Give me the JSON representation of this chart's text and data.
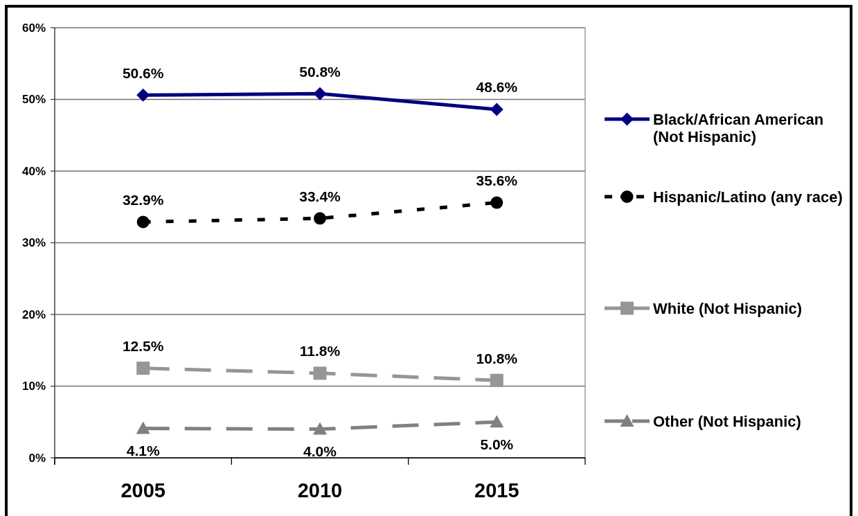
{
  "chart_data": {
    "type": "line",
    "categories": [
      "2005",
      "2010",
      "2015"
    ],
    "series": [
      {
        "name": "Black/African American (Not Hispanic)",
        "color": "#000080",
        "values": [
          50.6,
          50.8,
          48.6
        ],
        "value_labels": [
          "50.6%",
          "50.8%",
          "48.6%"
        ],
        "marker": "diamond",
        "line_style": "solid"
      },
      {
        "name": "Hispanic/Latino (any race)",
        "color": "#000000",
        "values": [
          32.9,
          33.4,
          35.6
        ],
        "value_labels": [
          "32.9%",
          "33.4%",
          "35.6%"
        ],
        "marker": "circle",
        "line_style": "dotted"
      },
      {
        "name": "White (Not Hispanic)",
        "color": "#969696",
        "values": [
          12.5,
          11.8,
          10.8
        ],
        "value_labels": [
          "12.5%",
          "11.8%",
          "10.8%"
        ],
        "marker": "square",
        "line_style": "dashed"
      },
      {
        "name": "Other (Not Hispanic)",
        "color": "#808080",
        "values": [
          4.1,
          4.0,
          5.0
        ],
        "value_labels": [
          "4.1%",
          "4.0%",
          "5.0%"
        ],
        "marker": "triangle",
        "line_style": "dashed"
      }
    ],
    "ylim": [
      0,
      60
    ],
    "yticks": [
      {
        "value": 0,
        "label": "0%"
      },
      {
        "value": 10,
        "label": "10%"
      },
      {
        "value": 20,
        "label": "20%"
      },
      {
        "value": 30,
        "label": "30%"
      },
      {
        "value": 40,
        "label": "40%"
      },
      {
        "value": 50,
        "label": "50%"
      },
      {
        "value": 60,
        "label": "60%"
      }
    ],
    "grid": "y",
    "legend": "right"
  }
}
